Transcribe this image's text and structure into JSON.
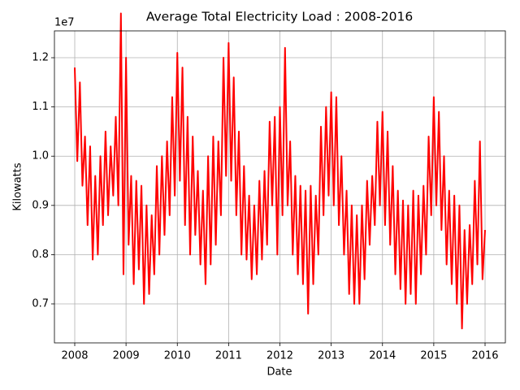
{
  "chart_data": {
    "type": "line",
    "title": "Average Total Electricity Load : 2008-2016",
    "xlabel": "Date",
    "ylabel": "Kilowatts",
    "y_offset_label": "1e7",
    "color": "#ff0000",
    "grid": true,
    "xlim": [
      2007.604,
      2016.396
    ],
    "xticks": [
      2008,
      2009,
      2010,
      2011,
      2012,
      2013,
      2014,
      2015,
      2016
    ],
    "ylim": [
      0.6208,
      1.2545
    ],
    "yticks": [
      0.7,
      0.8,
      0.9,
      {
        "value": 1.0,
        "label": "1.0"
      },
      1.1,
      1.2
    ],
    "x": [
      2008,
      2008.05,
      2008.1,
      2008.15,
      2008.2,
      2008.25,
      2008.3,
      2008.35,
      2008.4,
      2008.45,
      2008.5,
      2008.55,
      2008.6,
      2008.65,
      2008.7,
      2008.75,
      2008.8,
      2008.85,
      2008.9,
      2008.95,
      2009,
      2009.05,
      2009.1,
      2009.15,
      2009.2,
      2009.25,
      2009.3,
      2009.35,
      2009.4,
      2009.45,
      2009.5,
      2009.55,
      2009.6,
      2009.65,
      2009.7,
      2009.75,
      2009.8,
      2009.85,
      2009.9,
      2009.95,
      2010,
      2010.05,
      2010.1,
      2010.15,
      2010.2,
      2010.25,
      2010.3,
      2010.35,
      2010.4,
      2010.45,
      2010.5,
      2010.55,
      2010.6,
      2010.65,
      2010.7,
      2010.75,
      2010.8,
      2010.85,
      2010.9,
      2010.95,
      2011,
      2011.05,
      2011.1,
      2011.15,
      2011.2,
      2011.25,
      2011.3,
      2011.35,
      2011.4,
      2011.45,
      2011.5,
      2011.55,
      2011.6,
      2011.65,
      2011.7,
      2011.75,
      2011.8,
      2011.85,
      2011.9,
      2011.95,
      2012,
      2012.05,
      2012.1,
      2012.15,
      2012.2,
      2012.25,
      2012.3,
      2012.35,
      2012.4,
      2012.45,
      2012.5,
      2012.55,
      2012.6,
      2012.65,
      2012.7,
      2012.75,
      2012.8,
      2012.85,
      2012.9,
      2012.95,
      2013,
      2013.05,
      2013.1,
      2013.15,
      2013.2,
      2013.25,
      2013.3,
      2013.35,
      2013.4,
      2013.45,
      2013.5,
      2013.55,
      2013.6,
      2013.65,
      2013.7,
      2013.75,
      2013.8,
      2013.85,
      2013.9,
      2013.95,
      2014,
      2014.05,
      2014.1,
      2014.15,
      2014.2,
      2014.25,
      2014.3,
      2014.35,
      2014.4,
      2014.45,
      2014.5,
      2014.55,
      2014.6,
      2014.65,
      2014.7,
      2014.75,
      2014.8,
      2014.85,
      2014.9,
      2014.95,
      2015,
      2015.05,
      2015.1,
      2015.15,
      2015.2,
      2015.25,
      2015.3,
      2015.35,
      2015.4,
      2015.45,
      2015.5,
      2015.55,
      2015.6,
      2015.65,
      2015.7,
      2015.75,
      2015.8,
      2015.85,
      2015.9,
      2015.95,
      2016
    ],
    "values": [
      1.18,
      0.99,
      1.15,
      0.94,
      1.04,
      0.86,
      1.02,
      0.79,
      0.96,
      0.8,
      1.0,
      0.86,
      1.05,
      0.88,
      1.02,
      0.92,
      1.08,
      0.9,
      1.29,
      0.76,
      1.2,
      0.82,
      0.96,
      0.74,
      0.95,
      0.77,
      0.94,
      0.7,
      0.9,
      0.72,
      0.88,
      0.76,
      0.98,
      0.8,
      1.0,
      0.84,
      1.03,
      0.88,
      1.12,
      0.92,
      1.21,
      0.95,
      1.18,
      0.86,
      1.08,
      0.8,
      1.04,
      0.84,
      0.97,
      0.78,
      0.93,
      0.74,
      1.0,
      0.78,
      1.04,
      0.82,
      1.03,
      0.88,
      1.2,
      0.96,
      1.23,
      0.95,
      1.16,
      0.88,
      1.05,
      0.8,
      0.98,
      0.79,
      0.92,
      0.75,
      0.9,
      0.76,
      0.95,
      0.79,
      0.97,
      0.82,
      1.07,
      0.9,
      1.08,
      0.8,
      1.1,
      0.88,
      1.22,
      0.9,
      1.03,
      0.8,
      0.96,
      0.76,
      0.94,
      0.74,
      0.93,
      0.68,
      0.94,
      0.74,
      0.92,
      0.8,
      1.06,
      0.88,
      1.1,
      0.92,
      1.13,
      0.9,
      1.12,
      0.86,
      1.0,
      0.8,
      0.93,
      0.72,
      0.9,
      0.7,
      0.88,
      0.7,
      0.9,
      0.75,
      0.95,
      0.82,
      0.96,
      0.86,
      1.07,
      0.9,
      1.09,
      0.86,
      1.05,
      0.82,
      0.98,
      0.76,
      0.93,
      0.73,
      0.91,
      0.7,
      0.9,
      0.72,
      0.93,
      0.7,
      0.92,
      0.76,
      0.94,
      0.8,
      1.04,
      0.88,
      1.12,
      0.9,
      1.09,
      0.85,
      1.0,
      0.78,
      0.93,
      0.74,
      0.92,
      0.7,
      0.9,
      0.65,
      0.85,
      0.7,
      0.86,
      0.74,
      0.95,
      0.78,
      1.03,
      0.75,
      0.85
    ]
  }
}
